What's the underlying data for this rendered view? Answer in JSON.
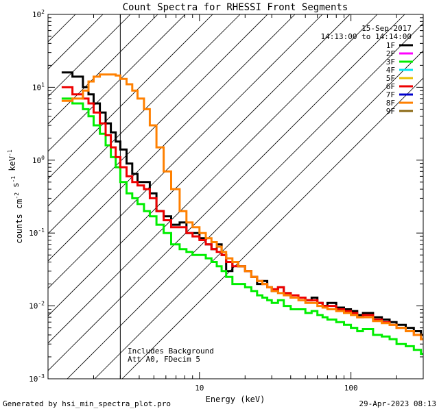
{
  "footer": {
    "generated_by": "Generated by hsi_min_spectra_plot.pro",
    "timestamp": "29-Apr-2023 08:13"
  },
  "chart_data": {
    "type": "line",
    "title": "Count Spectra for RHESSI Front Segments",
    "xlabel": "Energy (keV)",
    "ylabel": "counts cm-2 s-1 keV-1",
    "xscale": "log",
    "yscale": "log",
    "xlim": [
      1.0,
      300.0
    ],
    "ylim": [
      0.001,
      100
    ],
    "x_tick_labels": [
      {
        "value": 10,
        "label": "10"
      },
      {
        "value": 100,
        "label": "100"
      }
    ],
    "y_tick_labels": [
      {
        "value": 0.001,
        "base": "10",
        "exp": "-3"
      },
      {
        "value": 0.01,
        "base": "10",
        "exp": "-2"
      },
      {
        "value": 0.1,
        "base": "10",
        "exp": "-1"
      },
      {
        "value": 1,
        "base": "10",
        "exp": "0"
      },
      {
        "value": 10,
        "base": "10",
        "exp": "1"
      },
      {
        "value": 100,
        "base": "10",
        "exp": "2"
      }
    ],
    "date": "15-Sep-2017",
    "time_range": "14:13:00 to 14:14:00",
    "hatched_region": {
      "x_min": 1.0,
      "x_max": 3.0
    },
    "annotations": [
      "Includes Background",
      "Att A0, FDecim 5"
    ],
    "legend": [
      {
        "name": "1F",
        "color": "#000000"
      },
      {
        "name": "2F",
        "color": "#ff00ff"
      },
      {
        "name": "3F",
        "color": "#00ee00"
      },
      {
        "name": "4F",
        "color": "#00e5ee"
      },
      {
        "name": "5F",
        "color": "#e8c000"
      },
      {
        "name": "6F",
        "color": "#ee0000"
      },
      {
        "name": "7F",
        "color": "#0000cc"
      },
      {
        "name": "8F",
        "color": "#ff8000"
      },
      {
        "name": "9F",
        "color": "#8b6914"
      }
    ],
    "series": [
      {
        "name": "1F",
        "color": "#000000",
        "x": [
          1.23,
          1.45,
          1.7,
          1.85,
          2.0,
          2.2,
          2.4,
          2.6,
          2.8,
          3.0,
          3.3,
          3.6,
          3.9,
          4.3,
          4.7,
          5.2,
          5.8,
          6.5,
          7.4,
          8.2,
          9.0,
          10.0,
          11.0,
          12.0,
          13.0,
          14.0,
          15.0,
          16.5,
          18.0,
          20.0,
          22.0,
          24.0,
          26.0,
          28.0,
          30.0,
          33.0,
          36.0,
          40.0,
          45.0,
          50.0,
          55.0,
          60.0,
          65.0,
          70.0,
          80.0,
          90.0,
          100.0,
          110.0,
          120.0,
          140.0,
          160.0,
          180.0,
          200.0,
          230.0,
          260.0,
          290.0
        ],
        "values": [
          16,
          14,
          10,
          8,
          6,
          4.5,
          3.2,
          2.4,
          1.8,
          1.4,
          0.9,
          0.65,
          0.5,
          0.5,
          0.35,
          0.2,
          0.17,
          0.13,
          0.14,
          0.1,
          0.1,
          0.085,
          0.07,
          0.06,
          0.07,
          0.05,
          0.03,
          0.04,
          0.035,
          0.03,
          0.025,
          0.02,
          0.022,
          0.018,
          0.016,
          0.018,
          0.015,
          0.013,
          0.013,
          0.012,
          0.013,
          0.011,
          0.01,
          0.011,
          0.0095,
          0.009,
          0.0085,
          0.0075,
          0.008,
          0.007,
          0.0065,
          0.006,
          0.0055,
          0.005,
          0.0045,
          0.004
        ]
      },
      {
        "name": "3F",
        "color": "#00ee00",
        "x": [
          1.23,
          1.45,
          1.7,
          1.85,
          2.0,
          2.2,
          2.4,
          2.6,
          2.8,
          3.0,
          3.3,
          3.6,
          3.9,
          4.3,
          4.7,
          5.2,
          5.8,
          6.5,
          7.4,
          8.2,
          9.0,
          10.0,
          11.0,
          12.0,
          13.0,
          14.0,
          15.0,
          16.5,
          18.0,
          20.0,
          22.0,
          24.0,
          26.0,
          28.0,
          30.0,
          33.0,
          36.0,
          40.0,
          45.0,
          50.0,
          55.0,
          60.0,
          65.0,
          70.0,
          80.0,
          90.0,
          100.0,
          110.0,
          120.0,
          140.0,
          160.0,
          180.0,
          200.0,
          230.0,
          260.0,
          290.0
        ],
        "values": [
          7,
          6,
          5,
          4,
          3,
          2.3,
          1.6,
          1.1,
          0.8,
          0.5,
          0.35,
          0.3,
          0.25,
          0.2,
          0.17,
          0.13,
          0.1,
          0.07,
          0.06,
          0.055,
          0.05,
          0.05,
          0.045,
          0.04,
          0.035,
          0.03,
          0.025,
          0.02,
          0.02,
          0.018,
          0.016,
          0.014,
          0.013,
          0.012,
          0.011,
          0.012,
          0.01,
          0.009,
          0.009,
          0.008,
          0.0085,
          0.0075,
          0.007,
          0.0065,
          0.006,
          0.0055,
          0.005,
          0.0045,
          0.0048,
          0.004,
          0.0038,
          0.0035,
          0.003,
          0.0028,
          0.0025,
          0.0022
        ]
      },
      {
        "name": "6F",
        "color": "#ee0000",
        "x": [
          1.23,
          1.45,
          1.7,
          1.85,
          2.0,
          2.2,
          2.4,
          2.6,
          2.8,
          3.0,
          3.3,
          3.6,
          3.9,
          4.3,
          4.7,
          5.2,
          5.8,
          6.5,
          7.4,
          8.2,
          9.0,
          10.0,
          11.0,
          12.0,
          13.0,
          14.0,
          15.0,
          16.5,
          18.0,
          20.0,
          22.0,
          24.0,
          26.0,
          28.0,
          30.0,
          33.0,
          36.0,
          40.0,
          45.0,
          50.0,
          55.0,
          60.0,
          65.0,
          70.0,
          80.0,
          90.0,
          100.0,
          110.0,
          120.0,
          140.0,
          160.0,
          180.0,
          200.0,
          230.0,
          260.0,
          290.0
        ],
        "values": [
          10,
          8,
          7,
          6,
          4.5,
          3.2,
          2.2,
          1.5,
          1.1,
          0.8,
          0.6,
          0.5,
          0.45,
          0.4,
          0.3,
          0.2,
          0.15,
          0.12,
          0.12,
          0.1,
          0.09,
          0.08,
          0.07,
          0.06,
          0.055,
          0.05,
          0.04,
          0.035,
          0.035,
          0.03,
          0.025,
          0.022,
          0.02,
          0.018,
          0.017,
          0.018,
          0.015,
          0.014,
          0.013,
          0.012,
          0.012,
          0.011,
          0.01,
          0.01,
          0.009,
          0.0085,
          0.008,
          0.007,
          0.0075,
          0.0065,
          0.006,
          0.0055,
          0.005,
          0.0045,
          0.004,
          0.0035
        ]
      },
      {
        "name": "8F",
        "color": "#ff8000",
        "x": [
          1.23,
          1.45,
          1.7,
          1.85,
          2.0,
          2.2,
          2.4,
          2.6,
          2.8,
          3.0,
          3.3,
          3.6,
          3.9,
          4.3,
          4.7,
          5.2,
          5.8,
          6.5,
          7.4,
          8.2,
          9.0,
          10.0,
          11.0,
          12.0,
          13.0,
          14.0,
          15.0,
          16.5,
          18.0,
          20.0,
          22.0,
          24.0,
          26.0,
          28.0,
          30.0,
          33.0,
          36.0,
          40.0,
          45.0,
          50.0,
          55.0,
          60.0,
          65.0,
          70.0,
          80.0,
          90.0,
          100.0,
          110.0,
          120.0,
          140.0,
          160.0,
          180.0,
          200.0,
          230.0,
          260.0,
          290.0
        ],
        "values": [
          6.5,
          7,
          9,
          12,
          14,
          15,
          15,
          15,
          14.5,
          13,
          11,
          9,
          7,
          5,
          3,
          1.5,
          0.7,
          0.4,
          0.2,
          0.14,
          0.12,
          0.1,
          0.085,
          0.075,
          0.065,
          0.055,
          0.045,
          0.04,
          0.035,
          0.03,
          0.025,
          0.022,
          0.02,
          0.018,
          0.016,
          0.015,
          0.014,
          0.013,
          0.012,
          0.011,
          0.011,
          0.01,
          0.0095,
          0.009,
          0.0085,
          0.008,
          0.0075,
          0.007,
          0.007,
          0.0062,
          0.0058,
          0.0055,
          0.005,
          0.0045,
          0.004,
          0.0035
        ]
      }
    ]
  }
}
